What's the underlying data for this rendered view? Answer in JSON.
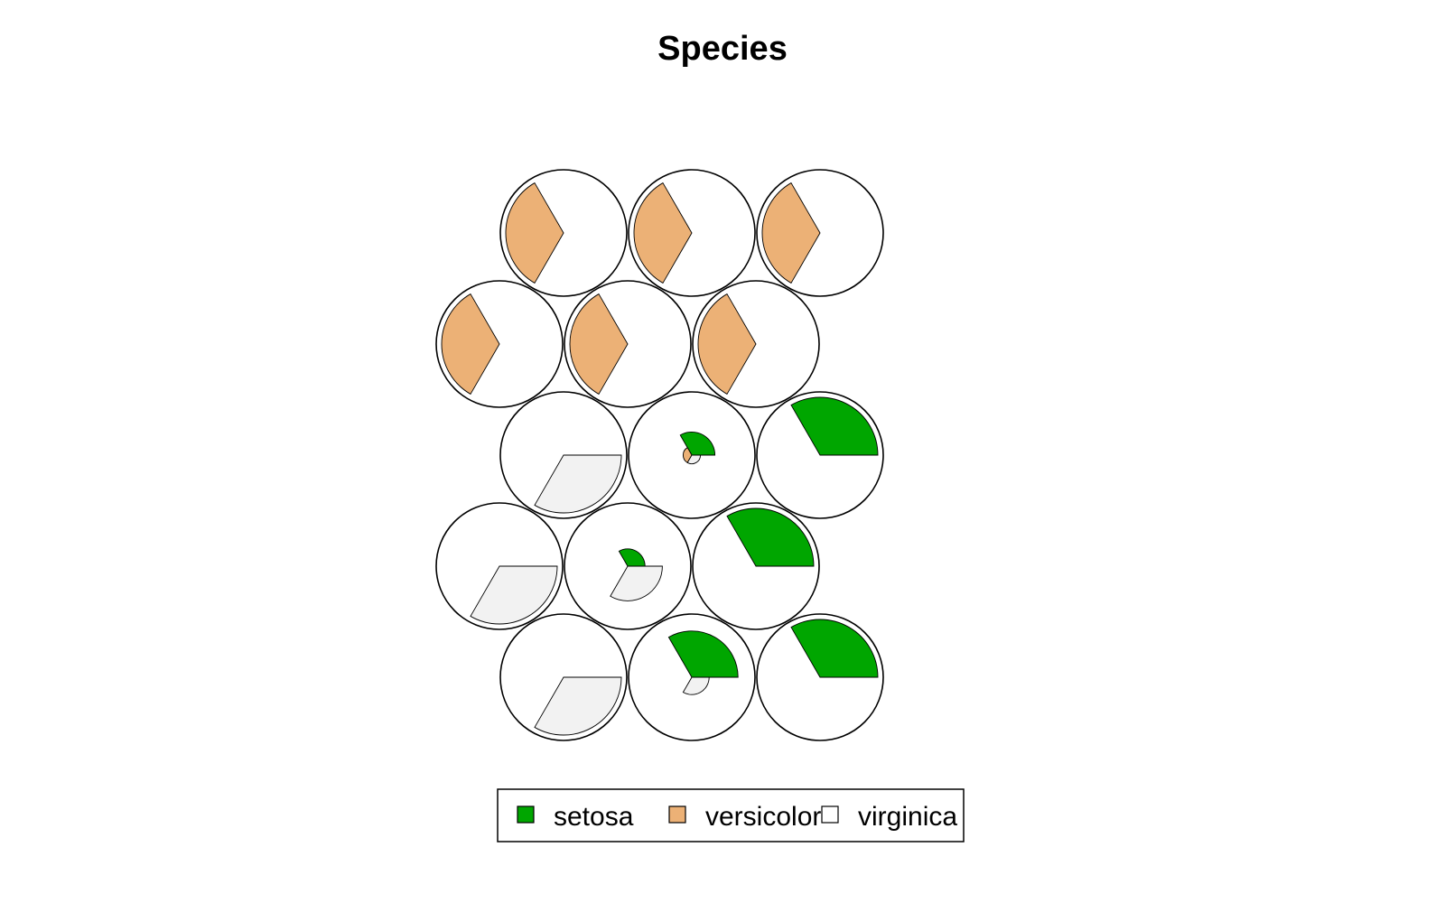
{
  "chart_data": {
    "type": "som-fan-diagram",
    "title": "Species",
    "grid": {
      "rows": 5,
      "cols": 3,
      "topology": "hexagonal"
    },
    "legend": {
      "position": "bottom",
      "orientation": "horizontal"
    },
    "series": [
      {
        "name": "setosa",
        "color": "#00a600"
      },
      {
        "name": "versicolor",
        "color": "#ecb176"
      },
      {
        "name": "virginica",
        "color": "#f2f2f2"
      }
    ],
    "units": [
      {
        "row": 1,
        "col": 1,
        "values": [
          0,
          1,
          0
        ]
      },
      {
        "row": 1,
        "col": 2,
        "values": [
          0,
          1,
          0
        ]
      },
      {
        "row": 1,
        "col": 3,
        "values": [
          0,
          1,
          0
        ]
      },
      {
        "row": 2,
        "col": 1,
        "values": [
          0,
          1,
          0
        ]
      },
      {
        "row": 2,
        "col": 2,
        "values": [
          0,
          1,
          0
        ]
      },
      {
        "row": 2,
        "col": 3,
        "values": [
          0,
          1,
          0
        ]
      },
      {
        "row": 3,
        "col": 1,
        "values": [
          0,
          0,
          1
        ]
      },
      {
        "row": 3,
        "col": 2,
        "values": [
          0.4,
          0.15,
          0.15
        ]
      },
      {
        "row": 3,
        "col": 3,
        "values": [
          1,
          0,
          0
        ]
      },
      {
        "row": 4,
        "col": 1,
        "values": [
          0,
          0,
          1
        ]
      },
      {
        "row": 4,
        "col": 2,
        "values": [
          0.3,
          0,
          0.6
        ]
      },
      {
        "row": 4,
        "col": 3,
        "values": [
          1,
          0,
          0
        ]
      },
      {
        "row": 5,
        "col": 1,
        "values": [
          0,
          0,
          1
        ]
      },
      {
        "row": 5,
        "col": 2,
        "values": [
          0.8,
          0,
          0.3
        ]
      },
      {
        "row": 5,
        "col": 3,
        "values": [
          1,
          0,
          0
        ]
      }
    ]
  }
}
